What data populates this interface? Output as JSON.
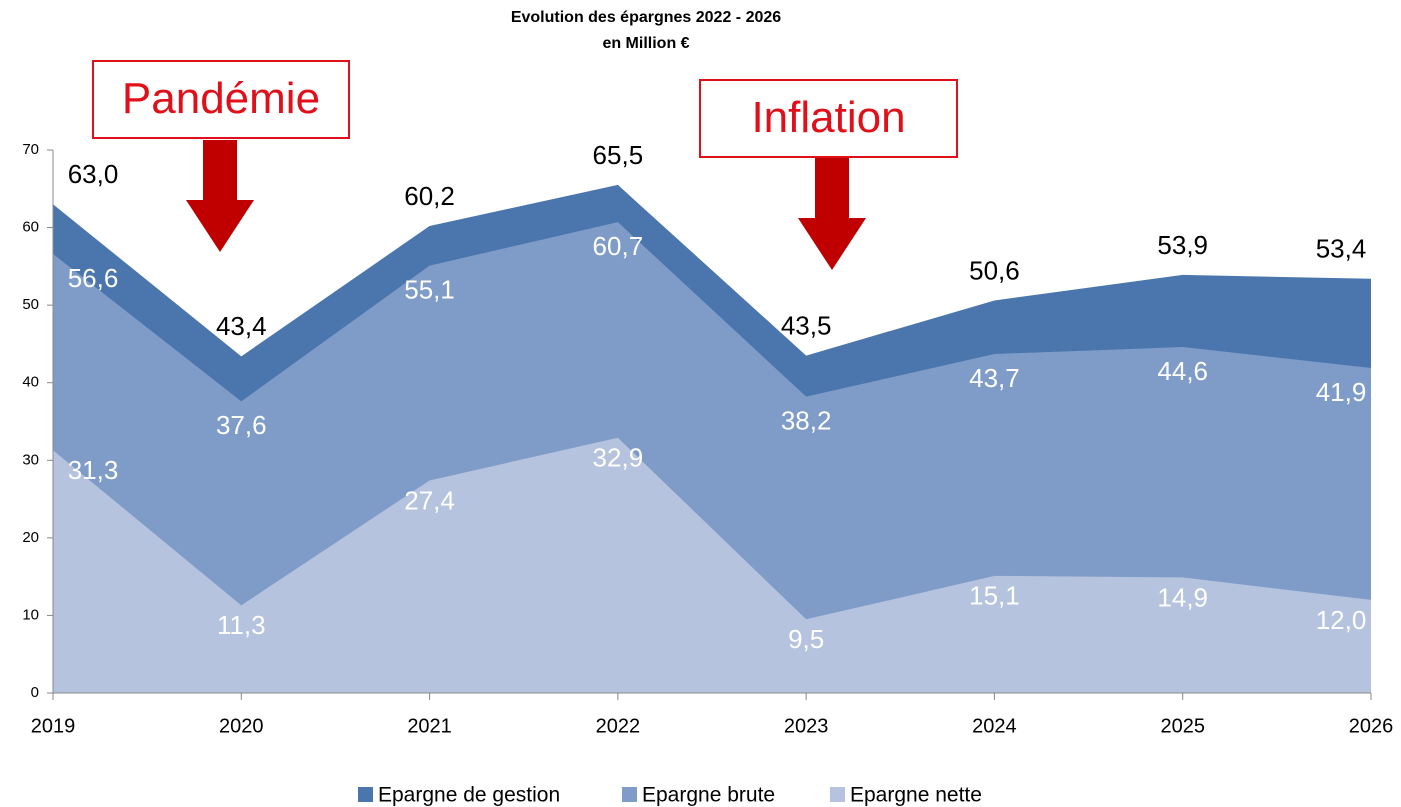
{
  "chart_data": {
    "type": "area",
    "title": "Evolution des épargnes 2022 - 2026",
    "subtitle": "en Million €",
    "categories": [
      "2019",
      "2020",
      "2021",
      "2022",
      "2023",
      "2024",
      "2025",
      "2026"
    ],
    "series": [
      {
        "name": "Epargne de gestion",
        "color": "#4a76ad",
        "values": [
          63.0,
          43.4,
          60.2,
          65.5,
          43.5,
          50.6,
          53.9,
          53.4
        ],
        "value_labels": [
          "63,0",
          "43,4",
          "60,2",
          "65,5",
          "43,5",
          "50,6",
          "53,9",
          "53,4"
        ]
      },
      {
        "name": "Epargne brute",
        "color": "#7f9cc8",
        "values": [
          56.6,
          37.6,
          55.1,
          60.7,
          38.2,
          43.7,
          44.6,
          41.9
        ],
        "value_labels": [
          "56,6",
          "37,6",
          "55,1",
          "60,7",
          "38,2",
          "43,7",
          "44,6",
          "41,9"
        ]
      },
      {
        "name": "Epargne nette",
        "color": "#b6c3de",
        "values": [
          31.3,
          11.3,
          27.4,
          32.9,
          9.5,
          15.1,
          14.9,
          12.0
        ],
        "value_labels": [
          "31,3",
          "11,3",
          "27,4",
          "32,9",
          "9,5",
          "15,1",
          "14,9",
          "12,0"
        ]
      }
    ],
    "ylim": [
      0,
      70
    ],
    "yticks": [
      0,
      10,
      20,
      30,
      40,
      50,
      60,
      70
    ],
    "annotations": [
      {
        "text": "Pandémie"
      },
      {
        "text": "Inflation"
      }
    ],
    "legend": "bottom"
  }
}
